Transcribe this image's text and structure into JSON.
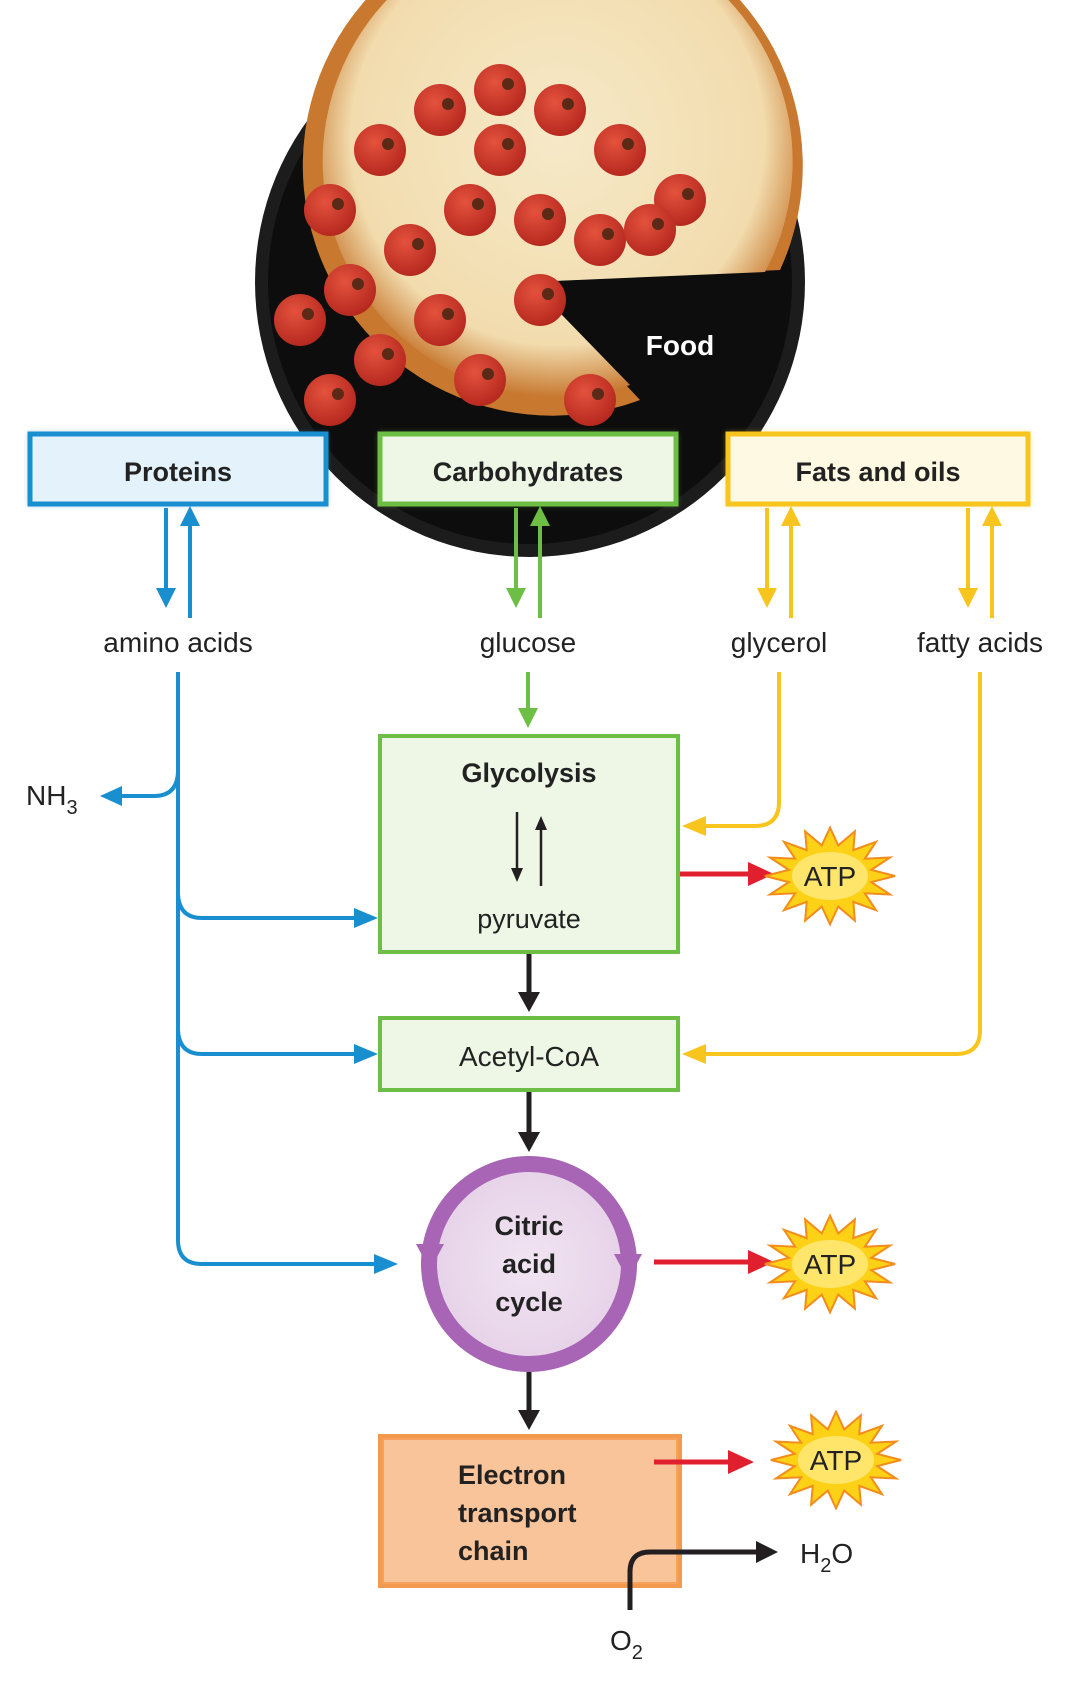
{
  "food_label": "Food",
  "boxes": {
    "proteins": "Proteins",
    "carbohydrates": "Carbohydrates",
    "fats": "Fats and oils",
    "glycolysis": "Glycolysis",
    "pyruvate": "pyruvate",
    "acetyl_coa": "Acetyl-CoA",
    "citric_line1": "Citric",
    "citric_line2": "acid",
    "citric_line3": "cycle",
    "etc_line1": "Electron",
    "etc_line2": "transport",
    "etc_line3": "chain"
  },
  "molecules": {
    "amino_acids": "amino acids",
    "glucose": "glucose",
    "glycerol": "glycerol",
    "fatty_acids": "fatty acids",
    "nh3_main": "NH",
    "nh3_sub": "3",
    "h2o_h": "H",
    "h2o_sub": "2",
    "h2o_o": "O",
    "o2_main": "O",
    "o2_sub": "2"
  },
  "atp": [
    "ATP",
    "ATP",
    "ATP"
  ],
  "colors": {
    "blue": "#1a8fd0",
    "green": "#6cbf44",
    "yellow": "#f7c51d",
    "red": "#e0202e",
    "purple": "#a865b5",
    "orange": "#f7a25c",
    "black": "#231f20"
  }
}
